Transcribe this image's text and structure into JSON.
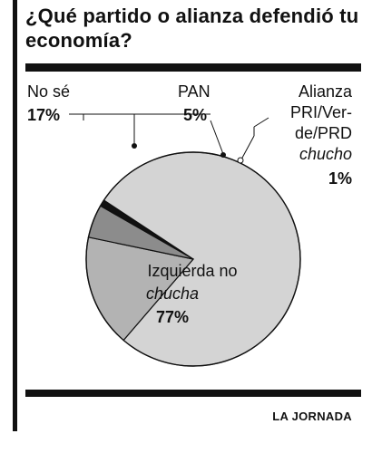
{
  "title": "¿Qué partido o alianza defendió tu economía?",
  "source": "LA JORNADA",
  "chart_data": {
    "type": "pie",
    "title": "¿Qué partido o alianza defendió tu economía?",
    "slices": [
      {
        "label": "Izquierda no chucha",
        "display": "77%",
        "value": 77,
        "color": "#d4d4d4",
        "label_lines": [
          "Izquierda no",
          "chucha",
          "77%"
        ]
      },
      {
        "label": "No sé",
        "display": "17%",
        "value": 17,
        "color": "#b3b3b3",
        "label_lines": [
          "No sé",
          "17%"
        ]
      },
      {
        "label": "PAN",
        "display": "5%",
        "value": 5,
        "color": "#8c8c8c",
        "label_lines": [
          "PAN",
          "5%"
        ]
      },
      {
        "label": "Alianza PRI/Verde/PRD chucho",
        "display": "1%",
        "value": 1,
        "color": "#111111",
        "label_lines": [
          "Alianza",
          "PRI/Ver-",
          "de/PRD",
          "chucho",
          "1%"
        ]
      }
    ]
  }
}
